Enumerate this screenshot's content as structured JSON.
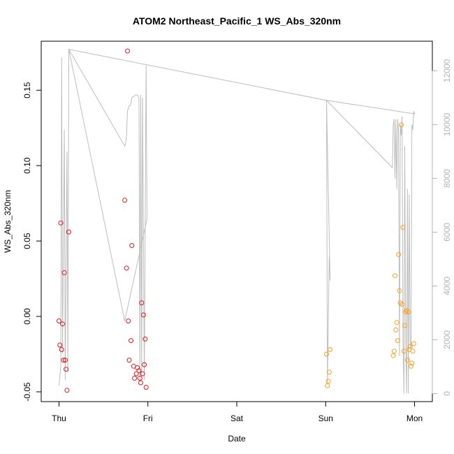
{
  "chart_data": {
    "type": "scatter",
    "title": "ATOM2 Northeast_Pacific_1 WS_Abs_320nm",
    "xlabel": "Date",
    "ylabel": "WS_Abs_320nm",
    "x_ticks": [
      {
        "label": "Thu",
        "value": 0
      },
      {
        "label": "Fri",
        "value": 1
      },
      {
        "label": "Sat",
        "value": 2
      },
      {
        "label": "Sun",
        "value": 3
      },
      {
        "label": "Mon",
        "value": 4
      }
    ],
    "xlim": [
      -0.2,
      4.2
    ],
    "ylim": [
      -0.0565,
      0.1825
    ],
    "y_ticks": [
      -0.05,
      0.0,
      0.05,
      0.1,
      0.15
    ],
    "y_tick_labels": [
      "-0.05",
      "0.00",
      "0.05",
      "0.10",
      "0.15"
    ],
    "y2lim": [
      -300,
      13100
    ],
    "y2_ticks": [
      0,
      2000,
      4000,
      6000,
      8000,
      10000,
      12000
    ],
    "y2_tick_labels": [
      "0",
      "2000",
      "4000",
      "6000",
      "8000",
      "10000",
      "12000"
    ],
    "colors": {
      "series1": "#e31a1c",
      "series2": "#ff9f1c",
      "line": "#bdbdbd"
    },
    "series": [
      {
        "color": "#e31a1c",
        "points": [
          [
            0.0,
            -0.003
          ],
          [
            0.01,
            -0.019
          ],
          [
            0.02,
            0.062
          ],
          [
            0.03,
            -0.022
          ],
          [
            0.04,
            -0.005
          ],
          [
            0.05,
            -0.029
          ],
          [
            0.06,
            0.029
          ],
          [
            0.07,
            -0.029
          ],
          [
            0.08,
            -0.035
          ],
          [
            0.09,
            -0.049
          ],
          [
            0.11,
            0.056
          ],
          [
            0.74,
            0.077
          ],
          [
            0.76,
            0.032
          ],
          [
            0.77,
            0.176
          ],
          [
            0.78,
            -0.003
          ],
          [
            0.79,
            -0.029
          ],
          [
            0.81,
            -0.016
          ],
          [
            0.82,
            0.047
          ],
          [
            0.84,
            -0.033
          ],
          [
            0.85,
            -0.041
          ],
          [
            0.87,
            -0.038
          ],
          [
            0.88,
            -0.034
          ],
          [
            0.9,
            -0.036
          ],
          [
            0.91,
            -0.041
          ],
          [
            0.92,
            -0.044
          ],
          [
            0.93,
            0.009
          ],
          [
            0.94,
            -0.038
          ],
          [
            0.95,
            0.001
          ],
          [
            0.96,
            -0.032
          ],
          [
            0.97,
            -0.015
          ],
          [
            0.98,
            -0.047
          ]
        ]
      },
      {
        "color": "#ff9f1c",
        "points": [
          [
            3.01,
            -0.025
          ],
          [
            3.02,
            -0.046
          ],
          [
            3.03,
            -0.043
          ],
          [
            3.04,
            -0.037
          ],
          [
            3.05,
            -0.022
          ],
          [
            3.76,
            -0.026
          ],
          [
            3.77,
            -0.023
          ],
          [
            3.78,
            0.027
          ],
          [
            3.79,
            -0.009
          ],
          [
            3.8,
            -0.004
          ],
          [
            3.81,
            -0.016
          ],
          [
            3.82,
            0.041
          ],
          [
            3.83,
            0.017
          ],
          [
            3.84,
            0.009
          ],
          [
            3.85,
            0.127
          ],
          [
            3.86,
            0.008
          ],
          [
            3.87,
            0.059
          ],
          [
            3.88,
            -0.023
          ],
          [
            3.89,
            -0.006
          ],
          [
            3.9,
            0.003
          ],
          [
            3.91,
            0.004
          ],
          [
            3.92,
            -0.029
          ],
          [
            3.93,
            0.003
          ],
          [
            3.94,
            -0.022
          ],
          [
            3.95,
            -0.02
          ],
          [
            3.96,
            -0.033
          ],
          [
            3.97,
            -0.031
          ],
          [
            3.98,
            -0.023
          ],
          [
            3.99,
            -0.018
          ]
        ]
      }
    ],
    "line_series": {
      "axis": "right",
      "color": "#bdbdbd",
      "points": [
        [
          0.0,
          300
        ],
        [
          0.02,
          1000
        ],
        [
          0.03,
          12500
        ],
        [
          0.04,
          1500
        ],
        [
          0.06,
          9800
        ],
        [
          0.07,
          500
        ],
        [
          0.09,
          9000
        ],
        [
          0.1,
          800
        ],
        [
          0.11,
          12800
        ],
        [
          0.74,
          9200
        ],
        [
          0.75,
          9300
        ],
        [
          0.76,
          9600
        ],
        [
          0.77,
          10500
        ],
        [
          0.78,
          10600
        ],
        [
          0.79,
          10700
        ],
        [
          0.8,
          10700
        ],
        [
          0.81,
          10800
        ],
        [
          0.82,
          11000
        ],
        [
          0.84,
          11050
        ],
        [
          0.86,
          11100
        ],
        [
          0.88,
          11100
        ],
        [
          0.9,
          11000
        ],
        [
          0.91,
          500
        ],
        [
          0.92,
          11100
        ],
        [
          0.93,
          600
        ],
        [
          0.94,
          11000
        ],
        [
          0.96,
          500
        ],
        [
          0.98,
          12200
        ],
        [
          0.99,
          6500
        ],
        [
          0.74,
          2700
        ],
        [
          0.11,
          12800
        ],
        [
          3.01,
          10900
        ],
        [
          3.02,
          400
        ],
        [
          3.04,
          5100
        ],
        [
          3.05,
          4200
        ],
        [
          3.01,
          10900
        ],
        [
          3.75,
          8400
        ],
        [
          3.76,
          10000
        ],
        [
          3.77,
          10200
        ],
        [
          3.78,
          8000
        ],
        [
          3.79,
          10200
        ],
        [
          3.8,
          7600
        ],
        [
          3.81,
          10200
        ],
        [
          3.82,
          9700
        ],
        [
          3.83,
          1400
        ],
        [
          3.84,
          10000
        ],
        [
          3.85,
          9600
        ],
        [
          3.86,
          10300
        ],
        [
          3.87,
          2000
        ],
        [
          3.88,
          0
        ],
        [
          3.89,
          9200
        ],
        [
          3.9,
          2000
        ],
        [
          3.91,
          0
        ],
        [
          3.92,
          7600
        ],
        [
          3.93,
          0
        ],
        [
          3.94,
          7400
        ],
        [
          3.95,
          1800
        ],
        [
          3.96,
          1700
        ],
        [
          3.97,
          10000
        ],
        [
          3.98,
          9800
        ],
        [
          3.99,
          10500
        ],
        [
          4.0,
          10400
        ],
        [
          3.01,
          10900
        ],
        [
          3.75,
          8400
        ]
      ]
    }
  }
}
